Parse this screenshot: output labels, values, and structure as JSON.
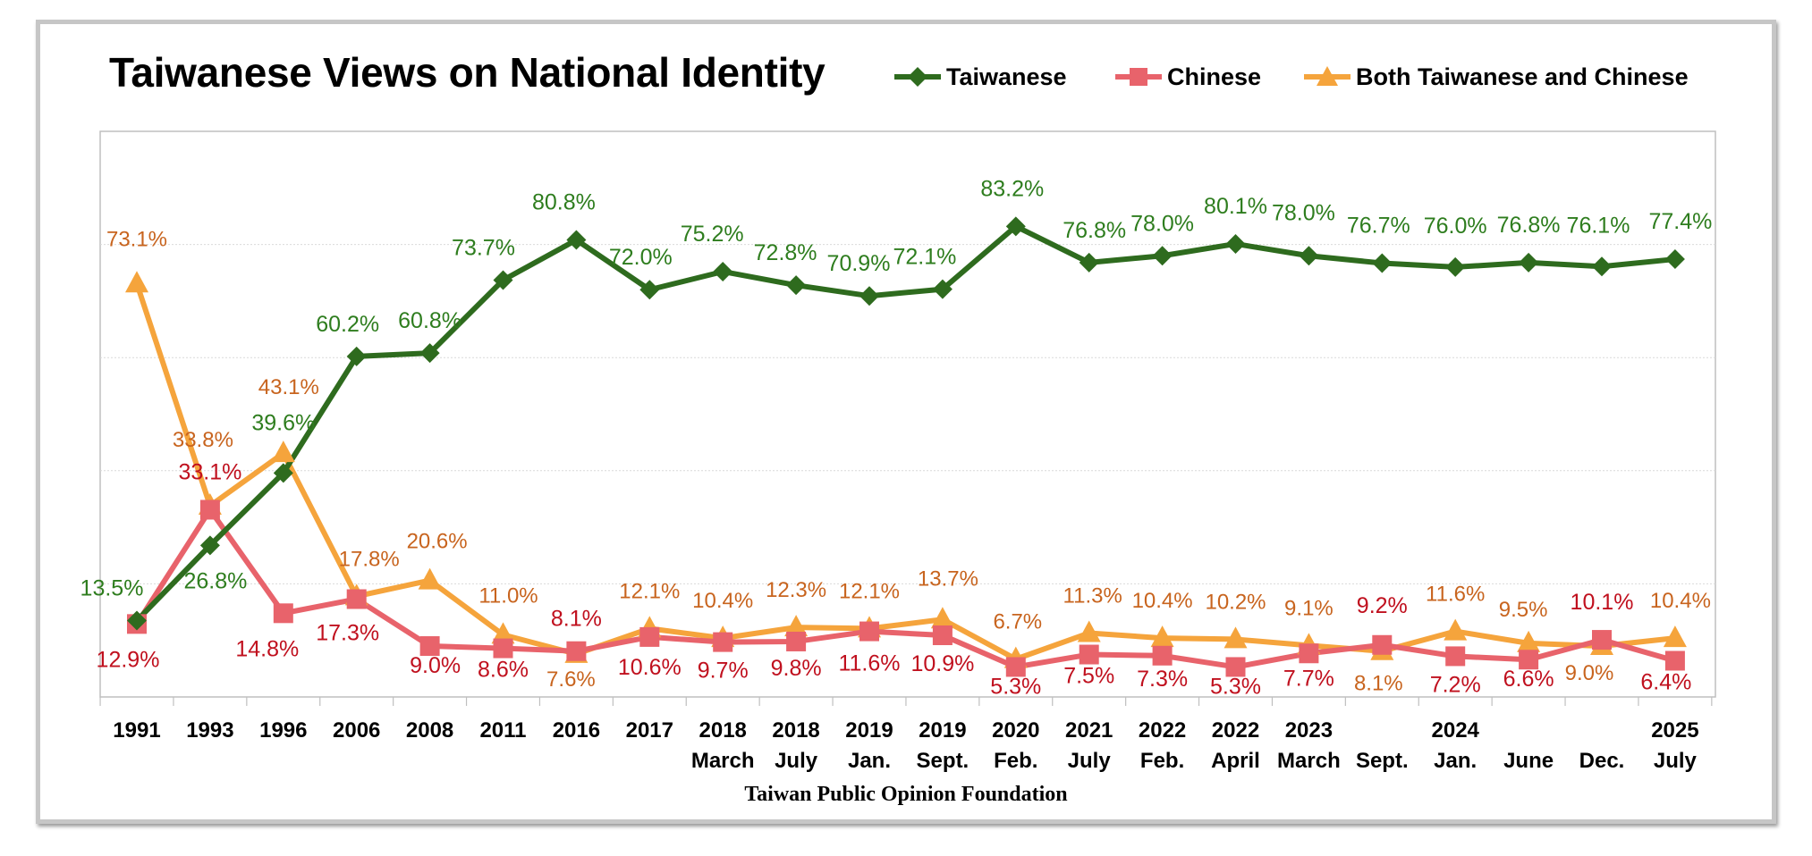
{
  "chart_data": {
    "type": "line",
    "title": "Taiwanese Views on National Identity",
    "source": "Taiwan Public Opinion Foundation",
    "legend_placement": "top-right",
    "grid": true,
    "ylim": [
      0,
      100
    ],
    "x_labels": [
      [
        "1991",
        ""
      ],
      [
        "1993",
        ""
      ],
      [
        "1996",
        ""
      ],
      [
        "2006",
        ""
      ],
      [
        "2008",
        ""
      ],
      [
        "2011",
        ""
      ],
      [
        "2016",
        ""
      ],
      [
        "2017",
        ""
      ],
      [
        "2018",
        "March"
      ],
      [
        "2018",
        "July"
      ],
      [
        "2019",
        "Jan."
      ],
      [
        "2019",
        "Sept."
      ],
      [
        "2020",
        "Feb."
      ],
      [
        "2021",
        "July"
      ],
      [
        "2022",
        "Feb."
      ],
      [
        "2022",
        "April"
      ],
      [
        "2023",
        "March"
      ],
      [
        "",
        "Sept."
      ],
      [
        "2024",
        "Jan."
      ],
      [
        "",
        "June"
      ],
      [
        "",
        "Dec."
      ],
      [
        "2025",
        "July"
      ]
    ],
    "series": [
      {
        "name": "Taiwanese",
        "color": "#2e6b1e",
        "label_color": "#2e7d1e",
        "marker": "diamond",
        "values": [
          13.5,
          26.8,
          39.6,
          60.2,
          60.8,
          73.7,
          80.8,
          72.0,
          75.2,
          72.8,
          70.9,
          72.1,
          83.2,
          76.8,
          78.0,
          80.1,
          78.0,
          76.7,
          76.0,
          76.8,
          76.1,
          77.4
        ],
        "labels": [
          "13.5%",
          "26.8%",
          "39.6%",
          "60.2%",
          "60.8%",
          "73.7%",
          "80.8%",
          "72.0%",
          "75.2%",
          "72.8%",
          "70.9%",
          "72.1%",
          "83.2%",
          "76.8%",
          "78.0%",
          "80.1%",
          "78.0%",
          "76.7%",
          "76.0%",
          "76.8%",
          "76.1%",
          "77.4%"
        ]
      },
      {
        "name": "Chinese",
        "color": "#e8636b",
        "label_color": "#c0101e",
        "marker": "square",
        "values": [
          12.9,
          33.1,
          14.8,
          17.3,
          9.0,
          8.6,
          8.1,
          10.6,
          9.7,
          9.8,
          11.6,
          10.9,
          5.3,
          7.5,
          7.3,
          5.3,
          7.7,
          9.2,
          7.2,
          6.6,
          10.1,
          6.4
        ],
        "labels": [
          "12.9%",
          "33.1%",
          "14.8%",
          "17.3%",
          "9.0%",
          "8.6%",
          "8.1%",
          "10.6%",
          "9.7%",
          "9.8%",
          "11.6%",
          "10.9%",
          "5.3%",
          "7.5%",
          "7.3%",
          "5.3%",
          "7.7%",
          "9.2%",
          "7.2%",
          "6.6%",
          "10.1%",
          "6.4%"
        ]
      },
      {
        "name": "Both Taiwanese and Chinese",
        "color": "#f5a43c",
        "label_color": "#c8641e",
        "marker": "triangle",
        "values": [
          73.1,
          33.8,
          43.1,
          17.8,
          20.6,
          11.0,
          7.6,
          12.1,
          10.4,
          12.3,
          12.1,
          13.7,
          6.7,
          11.3,
          10.4,
          10.2,
          9.1,
          8.1,
          11.6,
          9.5,
          9.0,
          10.4
        ],
        "labels": [
          "73.1%",
          "33.8%",
          "43.1%",
          "17.8%",
          "20.6%",
          "11.0%",
          "7.6%",
          "12.1%",
          "10.4%",
          "12.3%",
          "12.1%",
          "13.7%",
          "6.7%",
          "11.3%",
          "10.4%",
          "10.2%",
          "9.1%",
          "8.1%",
          "11.6%",
          "9.5%",
          "9.0%",
          "10.4%"
        ]
      }
    ]
  }
}
